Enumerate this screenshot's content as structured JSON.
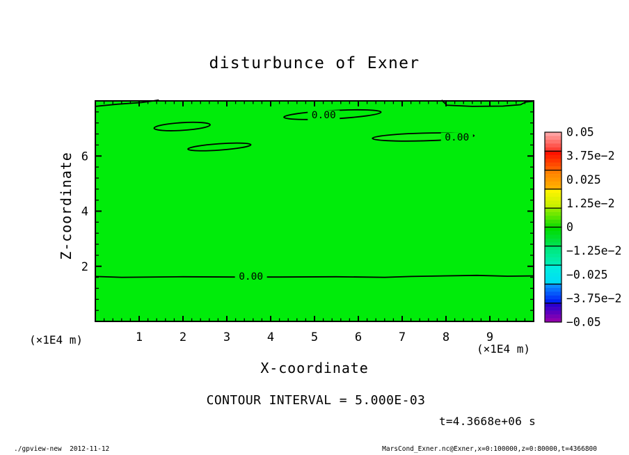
{
  "title": "disturbunce of Exner",
  "axis": {
    "x_title": "X-coordinate",
    "z_title": "Z-coordinate",
    "x_unit_left": "(×1E4 m)",
    "x_unit_right": "(×1E4 m)"
  },
  "notes": {
    "contour_interval": "CONTOUR INTERVAL = 5.000E-03",
    "time_stamp": "t=4.3668e+06 s"
  },
  "footer": {
    "left": "./gpview-new  2012-11-12",
    "right": "MarsCond_Exner.nc@Exner,x=0:100000,z=0:80000,t=4366800"
  },
  "chart_data": {
    "type": "heatmap",
    "subtype": "filled-contour x-z cross section with zero-contour lines",
    "title": "disturbunce of Exner",
    "xlabel": "X-coordinate (×1E4 m)",
    "ylabel": "Z-coordinate (×1E4 m)",
    "xlim": [
      0,
      10
    ],
    "ylim": [
      0,
      8
    ],
    "x_major_ticks": [
      1,
      2,
      3,
      4,
      5,
      6,
      7,
      8,
      9
    ],
    "x_minor_step": 0.2,
    "z_major_ticks": [
      2,
      4,
      6
    ],
    "z_minor_step": 0.4,
    "grid": false,
    "legend_position": "right colorbar",
    "contour_interval": 0.005,
    "contour_label": "0.00",
    "field_fill_color": "#00ec0a",
    "field_note": "disturbance is approximately 0 everywhere (single green band of the colorbar); only 0.00 contours are drawn",
    "zero_contours": {
      "open_lines": [
        {
          "name": "top-left-sliver",
          "points": [
            [
              0,
              7.8
            ],
            [
              0.5,
              7.88
            ],
            [
              1.05,
              7.94
            ],
            [
              1.45,
              8.03
            ]
          ]
        },
        {
          "name": "top-right-sliver",
          "points": [
            [
              7.9,
              8.03
            ],
            [
              8.02,
              7.84
            ],
            [
              8.6,
              7.8
            ],
            [
              9.3,
              7.81
            ],
            [
              9.7,
              7.86
            ],
            [
              9.82,
              7.96
            ],
            [
              10,
              7.99
            ]
          ]
        },
        {
          "name": "lower-level-z1.6",
          "points": [
            [
              0,
              1.63
            ],
            [
              0.6,
              1.6
            ],
            [
              2,
              1.62
            ],
            [
              3.2,
              1.61
            ],
            [
              4.2,
              1.61
            ],
            [
              5.5,
              1.62
            ],
            [
              6.6,
              1.6
            ],
            [
              7.2,
              1.63
            ],
            [
              8.7,
              1.67
            ],
            [
              9.4,
              1.64
            ],
            [
              10,
              1.65
            ]
          ]
        }
      ],
      "closed_ellipses": [
        {
          "cx": 1.98,
          "cz": 7.07,
          "rx": 0.64,
          "rz": 0.14,
          "tilt_deg": -3.5,
          "fill": "none"
        },
        {
          "cx": 2.83,
          "cz": 6.33,
          "rx": 0.72,
          "rz": 0.115,
          "tilt_deg": -4.0,
          "fill": "none"
        },
        {
          "cx": 5.41,
          "cz": 7.5,
          "rx": 1.11,
          "rz": 0.15,
          "tilt_deg": -3.0,
          "fill": "none"
        },
        {
          "cx": 7.48,
          "cz": 6.69,
          "rx": 1.16,
          "rz": 0.14,
          "tilt_deg": -1.5,
          "fill": "#13f013"
        }
      ],
      "labels": [
        {
          "x": 3.55,
          "z": 1.62
        },
        {
          "x": 5.21,
          "z": 7.47
        },
        {
          "x": 8.25,
          "z": 6.66
        }
      ]
    },
    "colorbar": {
      "labels": [
        "0.05",
        "3.75e−2",
        "0.025",
        "1.25e−2",
        "0",
        "−1.25e−2",
        "−0.025",
        "−3.75e−2",
        "−0.05"
      ],
      "segments": [
        [
          "#ffa2a2",
          "#ff4136"
        ],
        [
          "#ff1200",
          "#ff5c00"
        ],
        [
          "#ff8000",
          "#ffae00"
        ],
        [
          "#fef400",
          "#c6f000"
        ],
        [
          "#8ceb00",
          "#1ede00"
        ],
        [
          "#00dd00",
          "#00e14b"
        ],
        [
          "#00e878",
          "#00edb2"
        ],
        [
          "#00eede",
          "#00dcf4"
        ],
        [
          "#0a8cff",
          "#0024f5"
        ],
        [
          "#2a00cf",
          "#8f00ad"
        ]
      ]
    }
  }
}
